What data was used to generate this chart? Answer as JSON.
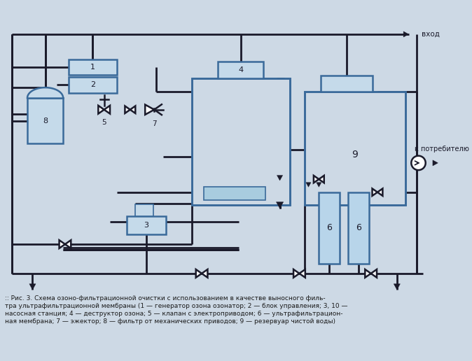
{
  "bg_color": "#cdd9e5",
  "box_fill": "#c5daea",
  "box_edge": "#3a6a9a",
  "line_color": "#1a1a2a",
  "caption_line1": ":: Рис. 3. Схема озоно-фильтрационной очистки с использованием в качестве выносного филь-",
  "caption_line2": "тра ультрафильтрационной мембраны (1 — генератор озона озонатор; 2 — блок управления; 3, 10 —",
  "caption_line3": "насосная станция; 4 — деструктор озона; 5 — клапан с электроприводом; 6 — ультрафильтрацион-",
  "caption_line4": "ная мембрана; 7 — эжектор; 8 — фильтр от механических приводов; 9 — резервуар чистой воды)"
}
